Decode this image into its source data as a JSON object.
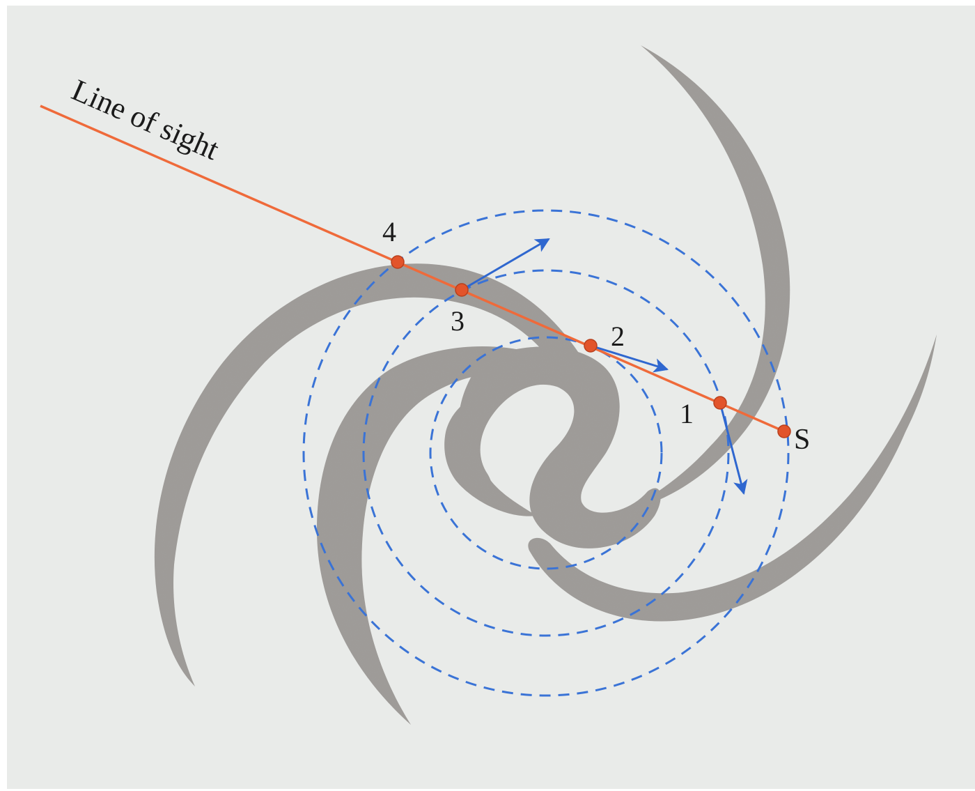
{
  "diagram": {
    "line_of_sight_label": "Line of sight",
    "points": [
      {
        "id": "1",
        "label": "1"
      },
      {
        "id": "2",
        "label": "2"
      },
      {
        "id": "3",
        "label": "3"
      },
      {
        "id": "4",
        "label": "4"
      }
    ],
    "sun_label": "S",
    "colors": {
      "paper": "#e9ebe9",
      "arm": "#9e9b98",
      "sight_line": "#ef6a3a",
      "orbits": "#3a73d6",
      "velocity_arrows": "#2f67cf",
      "points": "#e2542b"
    }
  }
}
